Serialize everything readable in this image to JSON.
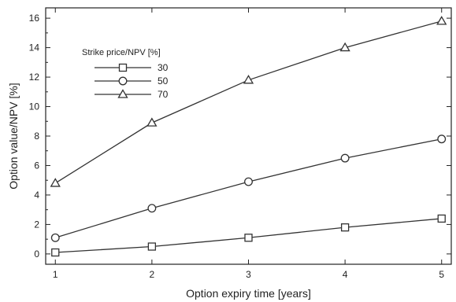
{
  "chart_data": {
    "type": "line",
    "title": "",
    "xlabel": "Option expiry time [years]",
    "ylabel": "Option value/NPV [%]",
    "x": [
      1,
      2,
      3,
      4,
      5
    ],
    "xlim": [
      0.9,
      5.1
    ],
    "ylim": [
      -0.7,
      16.7
    ],
    "xticks": [
      1,
      2,
      3,
      4,
      5
    ],
    "yticks": [
      0,
      2,
      4,
      6,
      8,
      10,
      12,
      14,
      16
    ],
    "grid": false,
    "legend": {
      "title": "Strike price/NPV [%]",
      "placement": "top-left"
    },
    "series": [
      {
        "name": "30",
        "marker": "square",
        "values": [
          0.1,
          0.5,
          1.1,
          1.8,
          2.4
        ]
      },
      {
        "name": "50",
        "marker": "circle",
        "values": [
          1.1,
          3.1,
          4.9,
          6.5,
          7.8
        ]
      },
      {
        "name": "70",
        "marker": "triangle",
        "values": [
          4.8,
          8.9,
          11.8,
          14.0,
          15.8
        ]
      }
    ],
    "colors": {
      "line": "#333333",
      "axis": "#222222",
      "marker_fill": "#ffffff"
    }
  }
}
